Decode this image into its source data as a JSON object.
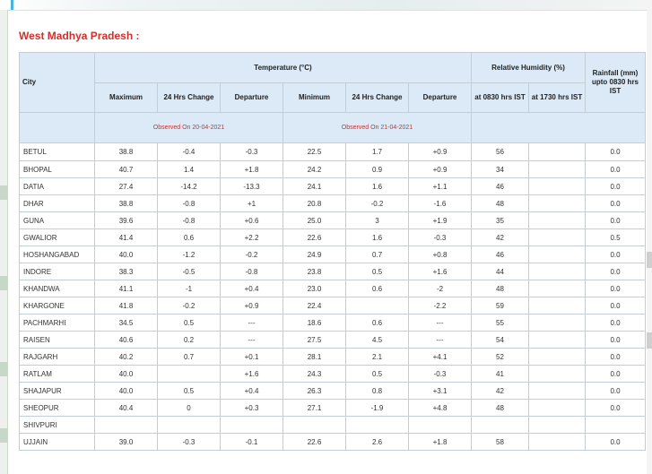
{
  "page_title": "West Madhya Pradesh :",
  "table": {
    "headers": {
      "city": "City",
      "temperature": "Temperature (°C)",
      "humidity": "Relative Humidity (%)",
      "rainfall": "Rainfall (mm) upto 0830 hrs IST",
      "maximum": "Maximum",
      "change_max": "24 Hrs Change",
      "departure_max": "Departure",
      "minimum": "Minimum",
      "change_min": "24 Hrs Change",
      "departure_min": "Departure",
      "hum_0830": "at 0830 hrs IST",
      "hum_1730": "at 1730 hrs IST",
      "observed_max": "Observed On 20-04-2021",
      "observed_min": "Observed On 21-04-2021"
    },
    "rows": [
      {
        "city": "BETUL",
        "max": "38.8",
        "chg_max": "-0.4",
        "dep_max": "-0.3",
        "min": "22.5",
        "chg_min": "1.7",
        "dep_min": "+0.9",
        "rh0830": "56",
        "rh1730": "",
        "rain": "0.0"
      },
      {
        "city": "BHOPAL",
        "max": "40.7",
        "chg_max": "1.4",
        "dep_max": "+1.8",
        "min": "24.2",
        "chg_min": "0.9",
        "dep_min": "+0.9",
        "rh0830": "34",
        "rh1730": "",
        "rain": "0.0"
      },
      {
        "city": "DATIA",
        "max": "27.4",
        "chg_max": "-14.2",
        "dep_max": "-13.3",
        "min": "24.1",
        "chg_min": "1.6",
        "dep_min": "+1.1",
        "rh0830": "46",
        "rh1730": "",
        "rain": "0.0"
      },
      {
        "city": "DHAR",
        "max": "38.8",
        "chg_max": "-0.8",
        "dep_max": "+1",
        "min": "20.8",
        "chg_min": "-0.2",
        "dep_min": "-1.6",
        "rh0830": "48",
        "rh1730": "",
        "rain": "0.0"
      },
      {
        "city": "GUNA",
        "max": "39.6",
        "chg_max": "-0.8",
        "dep_max": "+0.6",
        "min": "25.0",
        "chg_min": "3",
        "dep_min": "+1.9",
        "rh0830": "35",
        "rh1730": "",
        "rain": "0.0"
      },
      {
        "city": "GWALIOR",
        "max": "41.4",
        "chg_max": "0.6",
        "dep_max": "+2.2",
        "min": "22.6",
        "chg_min": "1.6",
        "dep_min": "-0.3",
        "rh0830": "42",
        "rh1730": "",
        "rain": "0.5"
      },
      {
        "city": "HOSHANGABAD",
        "max": "40.0",
        "chg_max": "-1.2",
        "dep_max": "-0.2",
        "min": "24.9",
        "chg_min": "0.7",
        "dep_min": "+0.8",
        "rh0830": "46",
        "rh1730": "",
        "rain": "0.0"
      },
      {
        "city": "INDORE",
        "max": "38.3",
        "chg_max": "-0.5",
        "dep_max": "-0.8",
        "min": "23.8",
        "chg_min": "0.5",
        "dep_min": "+1.6",
        "rh0830": "44",
        "rh1730": "",
        "rain": "0.0"
      },
      {
        "city": "KHANDWA",
        "max": "41.1",
        "chg_max": "-1",
        "dep_max": "+0.4",
        "min": "23.0",
        "chg_min": "0.6",
        "dep_min": "-2",
        "rh0830": "48",
        "rh1730": "",
        "rain": "0.0"
      },
      {
        "city": "KHARGONE",
        "max": "41.8",
        "chg_max": "-0.2",
        "dep_max": "+0.9",
        "min": "22.4",
        "chg_min": "",
        "dep_min": "-2.2",
        "rh0830": "59",
        "rh1730": "",
        "rain": "0.0"
      },
      {
        "city": "PACHMARHI",
        "max": "34.5",
        "chg_max": "0.5",
        "dep_max": "---",
        "min": "18.6",
        "chg_min": "0.6",
        "dep_min": "---",
        "rh0830": "55",
        "rh1730": "",
        "rain": "0.0"
      },
      {
        "city": "RAISEN",
        "max": "40.6",
        "chg_max": "0.2",
        "dep_max": "---",
        "min": "27.5",
        "chg_min": "4.5",
        "dep_min": "---",
        "rh0830": "54",
        "rh1730": "",
        "rain": "0.0"
      },
      {
        "city": "RAJGARH",
        "max": "40.2",
        "chg_max": "0.7",
        "dep_max": "+0.1",
        "min": "28.1",
        "chg_min": "2.1",
        "dep_min": "+4.1",
        "rh0830": "52",
        "rh1730": "",
        "rain": "0.0"
      },
      {
        "city": "RATLAM",
        "max": "40.0",
        "chg_max": "",
        "dep_max": "+1.6",
        "min": "24.3",
        "chg_min": "0.5",
        "dep_min": "-0.3",
        "rh0830": "41",
        "rh1730": "",
        "rain": "0.0"
      },
      {
        "city": "SHAJAPUR",
        "max": "40.0",
        "chg_max": "0.5",
        "dep_max": "+0.4",
        "min": "26.3",
        "chg_min": "0.8",
        "dep_min": "+3.1",
        "rh0830": "42",
        "rh1730": "",
        "rain": "0.0"
      },
      {
        "city": "SHEOPUR",
        "max": "40.4",
        "chg_max": "0",
        "dep_max": "+0.3",
        "min": "27.1",
        "chg_min": "-1.9",
        "dep_min": "+4.8",
        "rh0830": "48",
        "rh1730": "",
        "rain": "0.0"
      },
      {
        "city": "SHIVPURI",
        "max": "",
        "chg_max": "",
        "dep_max": "",
        "min": "",
        "chg_min": "",
        "dep_min": "",
        "rh0830": "",
        "rh1730": "",
        "rain": ""
      },
      {
        "city": "UJJAIN",
        "max": "39.0",
        "chg_max": "-0.3",
        "dep_max": "-0.1",
        "min": "22.6",
        "chg_min": "2.6",
        "dep_min": "+1.8",
        "rh0830": "58",
        "rh1730": "",
        "rain": "0.0"
      }
    ]
  }
}
